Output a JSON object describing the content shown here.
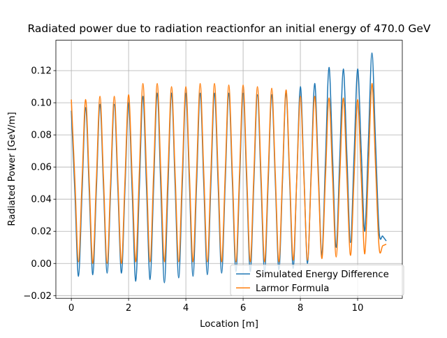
{
  "chart_data": {
    "type": "line",
    "title": "Radiated power due to radiation reactionfor an initial energy of 470.0 GeV",
    "x_label": "Location [m]",
    "y_label": "Radiated Power [GeV/m]",
    "x": [
      0,
      0.125,
      0.25,
      0.375,
      0.5,
      0.625,
      0.75,
      0.875,
      1,
      1.125,
      1.25,
      1.375,
      1.5,
      1.625,
      1.75,
      1.875,
      2,
      2.125,
      2.25,
      2.375,
      2.5,
      2.625,
      2.75,
      2.875,
      3,
      3.125,
      3.25,
      3.375,
      3.5,
      3.625,
      3.75,
      3.875,
      4,
      4.125,
      4.25,
      4.375,
      4.5,
      4.625,
      4.75,
      4.875,
      5,
      5.125,
      5.25,
      5.375,
      5.5,
      5.625,
      5.75,
      5.875,
      6,
      6.125,
      6.25,
      6.375,
      6.5,
      6.625,
      6.75,
      6.875,
      7,
      7.125,
      7.25,
      7.375,
      7.5,
      7.625,
      7.75,
      7.875,
      8,
      8.125,
      8.25,
      8.375,
      8.5,
      8.625,
      8.75,
      8.875,
      9,
      9.125,
      9.25,
      9.375,
      9.5,
      9.625,
      9.75,
      9.875,
      10,
      10.125,
      10.25,
      10.375,
      10.5,
      10.625,
      10.75,
      10.875,
      11
    ],
    "series": [
      {
        "name": "Simulated Energy Difference",
        "color": "#1f77b4",
        "values": [
          0.095,
          0.0435,
          -0.008,
          0.0445,
          0.097,
          0.045,
          -0.007,
          0.046,
          0.099,
          0.0465,
          -0.006,
          0.0465,
          0.099,
          0.0465,
          -0.006,
          0.047,
          0.1,
          0.0445,
          -0.011,
          0.0465,
          0.104,
          0.047,
          -0.01,
          0.048,
          0.106,
          0.047,
          -0.012,
          0.047,
          0.106,
          0.0485,
          -0.009,
          0.0485,
          0.106,
          0.049,
          -0.008,
          0.049,
          0.106,
          0.0495,
          -0.007,
          0.0495,
          0.106,
          0.05,
          -0.006,
          0.05,
          0.106,
          0.0505,
          -0.005,
          0.0505,
          0.106,
          0.0505,
          -0.005,
          0.05,
          0.105,
          0.05,
          -0.005,
          0.05,
          0.105,
          0.0505,
          -0.004,
          0.051,
          0.106,
          0.0515,
          -0.003,
          0.0535,
          0.11,
          0.055,
          0,
          0.056,
          0.112,
          0.0585,
          0.005,
          0.0635,
          0.122,
          0.066,
          0.01,
          0.0655,
          0.121,
          0.067,
          0.013,
          0.067,
          0.121,
          0.0705,
          0.02,
          0.0755,
          0.131,
          0.0755,
          0.02,
          0.017,
          0.014
        ]
      },
      {
        "name": "Larmor Formula",
        "color": "#ff7f0e",
        "values": [
          0.102,
          0.0515,
          0.001,
          0.0515,
          0.102,
          0.051,
          0,
          0.052,
          0.104,
          0.052,
          0,
          0.052,
          0.104,
          0.052,
          0,
          0.0525,
          0.105,
          0.053,
          0.001,
          0.0565,
          0.112,
          0.0565,
          0.001,
          0.0565,
          0.112,
          0.0565,
          0.001,
          0.0555,
          0.11,
          0.0555,
          0.001,
          0.0555,
          0.11,
          0.0555,
          0.001,
          0.0565,
          0.112,
          0.0565,
          0.001,
          0.0565,
          0.112,
          0.0565,
          0.001,
          0.056,
          0.111,
          0.056,
          0.001,
          0.056,
          0.111,
          0.056,
          0.001,
          0.0555,
          0.11,
          0.0555,
          0.001,
          0.055,
          0.109,
          0.055,
          0.001,
          0.0545,
          0.108,
          0.055,
          0.002,
          0.053,
          0.104,
          0.053,
          0.002,
          0.053,
          0.104,
          0.0535,
          0.003,
          0.053,
          0.103,
          0.0535,
          0.004,
          0.0535,
          0.103,
          0.054,
          0.005,
          0.0535,
          0.102,
          0.054,
          0.006,
          0.059,
          0.112,
          0.061,
          0.01,
          0.011,
          0.012
        ]
      }
    ],
    "xlim": [
      -0.54,
      11.56
    ],
    "ylim": [
      -0.0217,
      0.1389
    ],
    "xticks": [
      0,
      2,
      4,
      6,
      8,
      10
    ],
    "yticks": [
      {
        "value": -0.02,
        "label": "−0.02"
      },
      {
        "value": 0,
        "label": "0.00"
      },
      {
        "value": 0.02,
        "label": "0.02"
      },
      {
        "value": 0.04,
        "label": "0.04"
      },
      {
        "value": 0.06,
        "label": "0.06"
      },
      {
        "value": 0.08,
        "label": "0.08"
      },
      {
        "value": 0.1,
        "label": "0.10"
      },
      {
        "value": 0.12,
        "label": "0.12"
      }
    ],
    "grid": true,
    "legend": "lower right"
  }
}
